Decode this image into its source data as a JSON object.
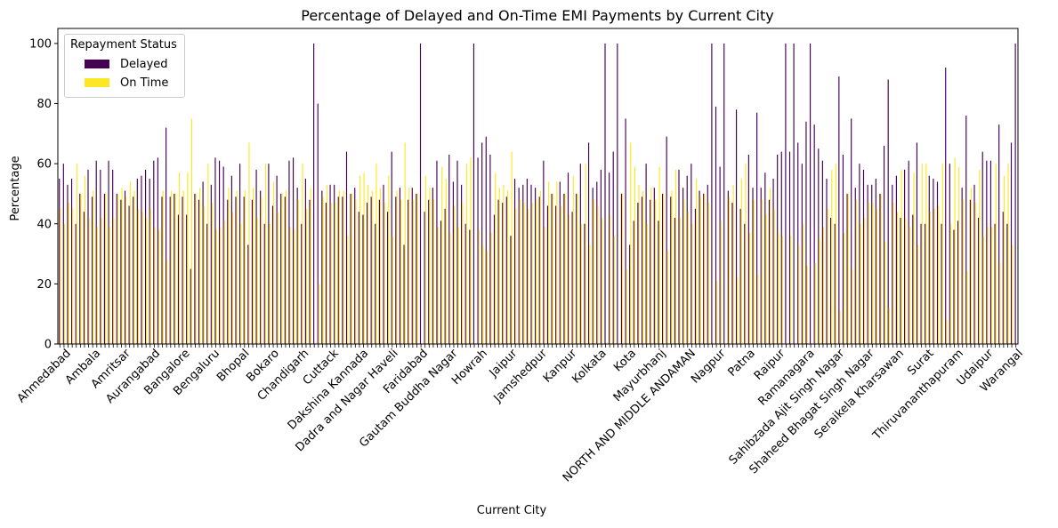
{
  "chart_data": {
    "type": "bar",
    "title": "Percentage of Delayed and On-Time EMI Payments by Current City",
    "xlabel": "Current City",
    "ylabel": "Percentage",
    "ylim": [
      0,
      105
    ],
    "yticks": [
      0,
      20,
      40,
      60,
      80,
      100
    ],
    "grid": false,
    "legend": {
      "title": "Repayment Status",
      "placement": "top-left"
    },
    "colors": {
      "Delayed": "#440154",
      "On Time": "#fde725"
    },
    "visible_category_labels": [
      "Ahmedabad",
      "Ambala",
      "Amritsar",
      "Aurangabad",
      "Bangalore",
      "Bengaluru",
      "Bhopal",
      "Bokaro",
      "Chandigarh",
      "Cuttack",
      "Dakshina Kannada",
      "Dadra and Nagar Haveli",
      "Faridabad",
      "Gautam Buddha Nagar",
      "Howrah",
      "Jaipur",
      "Jamshedpur",
      "Kanpur",
      "Kolkata",
      "Kota",
      "Mayurbhanj",
      "NORTH AND MIDDLE ANDAMAN",
      "Nagpur",
      "Patna",
      "Raipur",
      "Ramanagara",
      "Sahibzada Ajit Singh Nagar",
      "Shaheed Bhagat Singh Nagar",
      "Seraikela Kharsawan",
      "Surat",
      "Thiruvananthapuram",
      "Udaipur",
      "Warangal"
    ],
    "series": [
      {
        "name": "Delayed",
        "values": [
          55,
          60,
          53,
          55,
          40,
          50,
          44,
          58,
          49,
          61,
          58,
          50,
          61,
          58,
          50,
          48,
          51,
          46,
          49,
          55,
          56,
          58,
          55,
          61,
          62,
          49,
          72,
          49,
          50,
          43,
          49,
          43,
          25,
          50,
          48,
          54,
          40,
          53,
          62,
          61,
          59,
          48,
          56,
          49,
          60,
          49,
          33,
          48,
          58,
          51,
          40,
          60,
          46,
          56,
          50,
          49,
          61,
          62,
          52,
          40,
          55,
          48,
          100,
          80,
          51,
          47,
          53,
          53,
          49,
          49,
          64,
          50,
          52,
          44,
          43,
          47,
          49,
          40,
          48,
          53,
          44,
          64,
          49,
          52,
          33,
          48,
          52,
          50,
          100,
          44,
          48,
          52,
          61,
          41,
          45,
          63,
          54,
          61,
          53,
          40,
          38,
          100,
          62,
          67,
          69,
          63,
          43,
          48,
          47,
          49,
          36,
          55,
          52,
          53,
          55,
          53,
          52,
          49,
          61,
          46,
          50,
          46,
          54,
          50,
          57,
          44,
          50,
          60,
          40,
          67,
          52,
          54,
          58,
          100,
          57,
          64,
          100,
          50,
          75,
          33,
          41,
          47,
          49,
          60,
          48,
          52,
          41,
          50,
          69,
          49,
          42,
          58,
          52,
          56,
          60,
          45,
          51,
          50,
          53,
          100,
          79,
          59,
          100,
          51,
          47,
          78,
          45,
          40,
          63,
          52,
          77,
          52,
          57,
          48,
          55,
          63,
          64,
          100,
          64,
          100,
          67,
          60,
          74,
          100,
          73,
          65,
          61,
          55,
          42,
          40,
          89,
          63,
          50,
          75,
          52,
          60,
          58,
          53,
          53,
          55,
          50,
          66,
          88,
          53,
          56,
          42,
          58,
          61,
          43,
          67,
          40,
          40,
          56,
          55,
          54,
          40,
          92,
          60,
          38,
          41,
          52,
          76,
          48,
          53,
          42,
          64,
          61,
          61,
          40,
          73,
          44,
          40,
          67,
          100
        ]
      },
      {
        "name": "On Time",
        "values": [
          45,
          40,
          47,
          45,
          60,
          50,
          56,
          42,
          51,
          39,
          42,
          50,
          39,
          42,
          50,
          52,
          49,
          54,
          51,
          45,
          44,
          42,
          45,
          39,
          38,
          51,
          28,
          51,
          50,
          57,
          51,
          57,
          75,
          50,
          52,
          46,
          60,
          47,
          38,
          39,
          41,
          52,
          44,
          51,
          40,
          51,
          67,
          52,
          42,
          49,
          60,
          40,
          54,
          44,
          50,
          51,
          39,
          38,
          48,
          60,
          45,
          52,
          0,
          20,
          49,
          53,
          47,
          47,
          51,
          51,
          36,
          50,
          48,
          56,
          57,
          53,
          51,
          60,
          52,
          47,
          56,
          36,
          51,
          48,
          67,
          52,
          48,
          50,
          0,
          56,
          52,
          48,
          39,
          59,
          55,
          37,
          46,
          39,
          47,
          60,
          62,
          0,
          38,
          33,
          31,
          37,
          57,
          52,
          53,
          51,
          64,
          45,
          48,
          47,
          45,
          47,
          48,
          51,
          39,
          54,
          50,
          54,
          46,
          50,
          43,
          56,
          50,
          40,
          60,
          33,
          48,
          46,
          42,
          0,
          43,
          36,
          0,
          50,
          25,
          67,
          59,
          53,
          51,
          40,
          52,
          48,
          59,
          50,
          31,
          51,
          58,
          42,
          48,
          44,
          40,
          55,
          49,
          50,
          47,
          0,
          21,
          41,
          0,
          49,
          53,
          22,
          55,
          60,
          37,
          48,
          23,
          48,
          43,
          52,
          45,
          37,
          36,
          0,
          36,
          0,
          33,
          40,
          26,
          0,
          27,
          35,
          39,
          45,
          58,
          60,
          11,
          37,
          50,
          25,
          48,
          40,
          42,
          47,
          47,
          45,
          50,
          34,
          12,
          47,
          44,
          58,
          42,
          39,
          57,
          33,
          60,
          60,
          44,
          45,
          46,
          60,
          8,
          40,
          62,
          59,
          48,
          24,
          52,
          47,
          58,
          36,
          39,
          39,
          60,
          27,
          56,
          60,
          33,
          0
        ]
      }
    ]
  }
}
